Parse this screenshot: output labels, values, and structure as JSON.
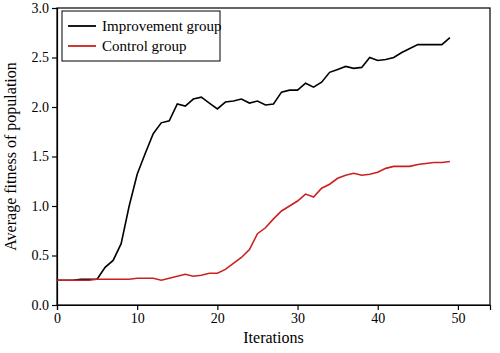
{
  "chart_data": {
    "type": "line",
    "x_label": "Iterations",
    "y_label": "Average fitness of population",
    "x": [
      0,
      1,
      2,
      3,
      4,
      5,
      6,
      7,
      8,
      9,
      10,
      11,
      12,
      13,
      14,
      15,
      16,
      17,
      18,
      19,
      20,
      21,
      22,
      23,
      24,
      25,
      26,
      27,
      28,
      29,
      30,
      31,
      32,
      33,
      34,
      35,
      36,
      37,
      38,
      39,
      40,
      41,
      42,
      43,
      44,
      45,
      46,
      47,
      48,
      49
    ],
    "series": [
      {
        "name": "Improvement group",
        "color": "#000000",
        "values": [
          0.25,
          0.25,
          0.25,
          0.26,
          0.26,
          0.26,
          0.38,
          0.45,
          0.62,
          1.0,
          1.32,
          1.53,
          1.73,
          1.84,
          1.86,
          2.03,
          2.01,
          2.08,
          2.1,
          2.04,
          1.98,
          2.05,
          2.06,
          2.08,
          2.04,
          2.06,
          2.02,
          2.03,
          2.15,
          2.17,
          2.17,
          2.24,
          2.2,
          2.25,
          2.35,
          2.38,
          2.41,
          2.39,
          2.4,
          2.5,
          2.47,
          2.48,
          2.5,
          2.55,
          2.59,
          2.63,
          2.63,
          2.63,
          2.63,
          2.7
        ]
      },
      {
        "name": "Control group",
        "color": "#cc2020",
        "values": [
          0.25,
          0.25,
          0.25,
          0.25,
          0.25,
          0.26,
          0.26,
          0.26,
          0.26,
          0.26,
          0.27,
          0.27,
          0.27,
          0.25,
          0.27,
          0.29,
          0.31,
          0.29,
          0.3,
          0.32,
          0.32,
          0.36,
          0.42,
          0.48,
          0.56,
          0.72,
          0.78,
          0.87,
          0.95,
          1.0,
          1.05,
          1.12,
          1.09,
          1.18,
          1.22,
          1.28,
          1.31,
          1.33,
          1.31,
          1.32,
          1.34,
          1.38,
          1.4,
          1.4,
          1.4,
          1.42,
          1.43,
          1.44,
          1.44,
          1.45
        ]
      }
    ],
    "xlim": [
      0,
      54
    ],
    "xticks": [
      0,
      10,
      20,
      30,
      40,
      50
    ],
    "ylim": [
      0,
      3
    ],
    "yticks": [
      {
        "value": 0,
        "label": "0.0"
      },
      0.5,
      {
        "value": 1,
        "label": "1.0"
      },
      1.5,
      {
        "value": 2,
        "label": "2.0"
      },
      2.5,
      {
        "value": 3,
        "label": "3.0"
      }
    ],
    "legend": "upper left",
    "grid": false
  }
}
